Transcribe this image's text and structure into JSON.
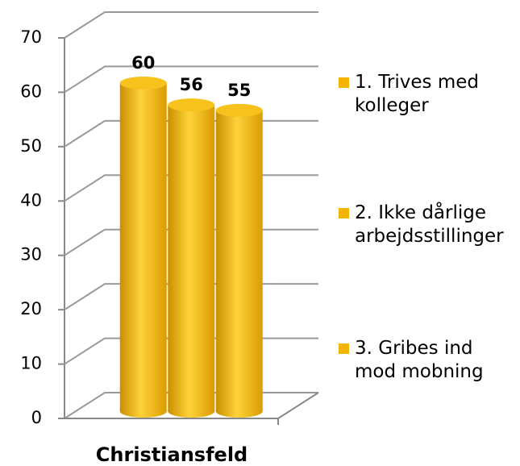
{
  "chart_data": {
    "type": "bar3d",
    "categories": [
      "Christiansfeld"
    ],
    "series": [
      {
        "name": "1. Trives med kolleger",
        "color": "#f5b400",
        "values": [
          60
        ]
      },
      {
        "name": "2. Ikke dårlige arbejdsstillinger",
        "color": "#f5b400",
        "values": [
          56
        ]
      },
      {
        "name": "3. Gribes ind mod mobning",
        "color": "#f5b400",
        "values": [
          55
        ]
      }
    ],
    "ylim": [
      0,
      70
    ],
    "yticks": [
      0,
      10,
      20,
      30,
      40,
      50,
      60,
      70
    ],
    "grid": true,
    "legend": "right"
  }
}
